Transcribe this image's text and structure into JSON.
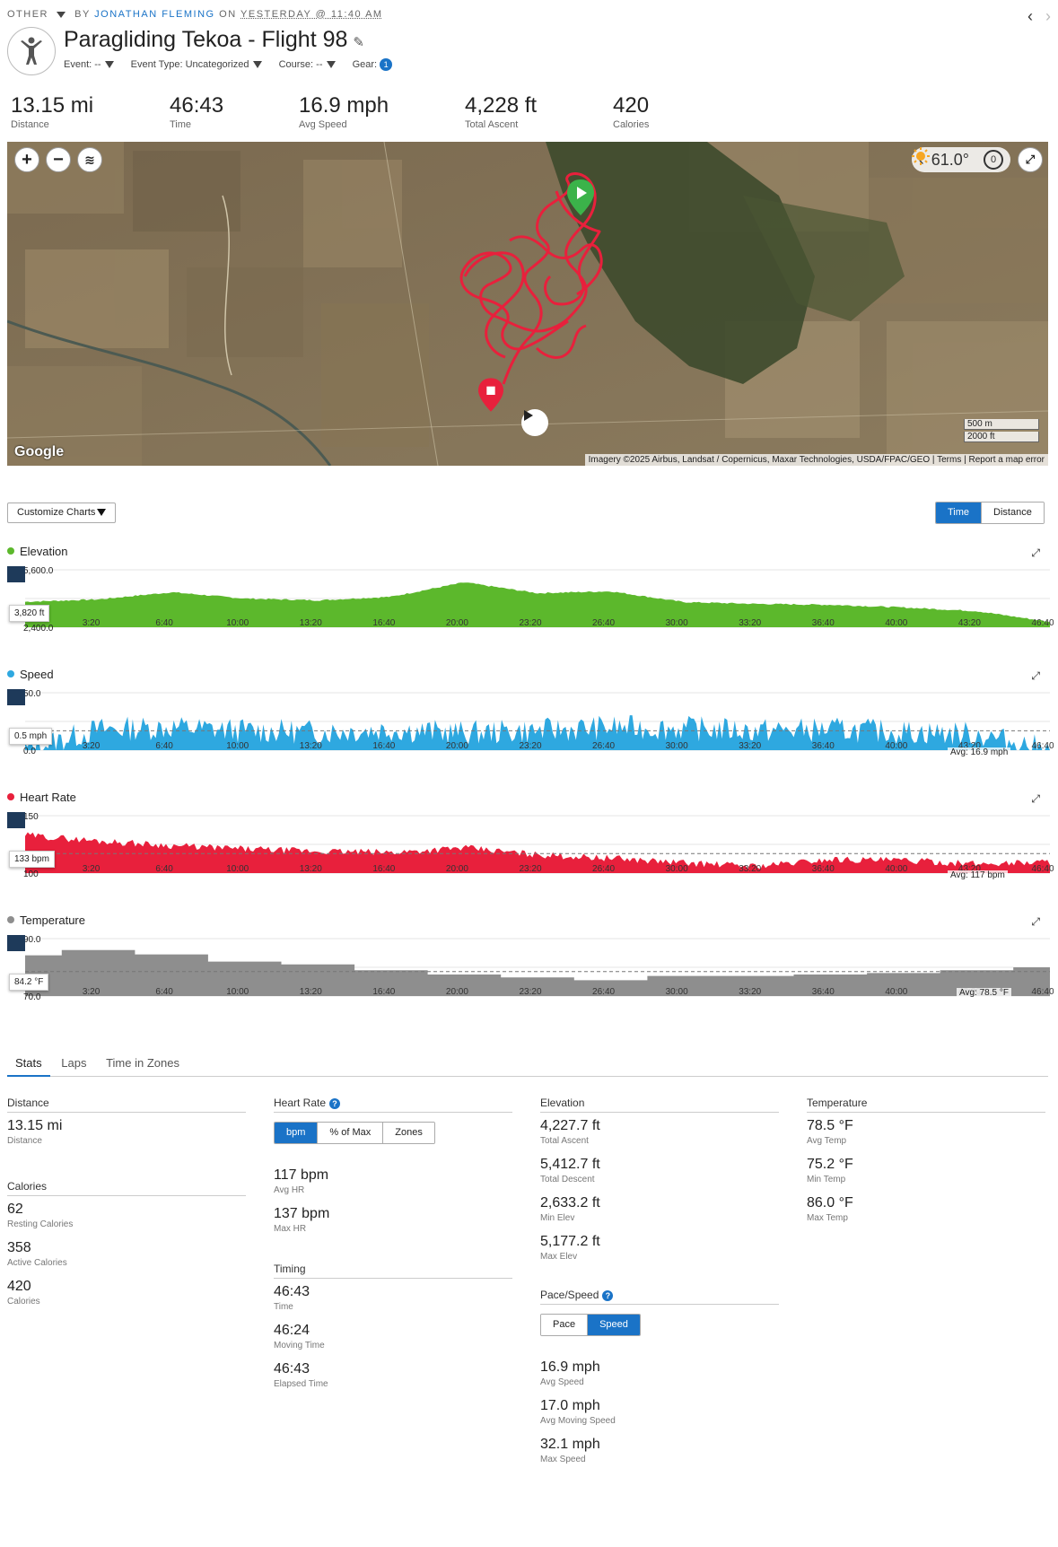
{
  "header": {
    "category": "OTHER",
    "by_label": "BY",
    "author": "JONATHAN FLEMING",
    "on_label": "ON",
    "when": "YESTERDAY @ 11:40 AM",
    "title": "Paragliding Tekoa - Flight 98",
    "meta": {
      "event": "Event: --",
      "event_type": "Event Type: Uncategorized",
      "course": "Course: --",
      "gear": "Gear:",
      "gear_count": "1"
    }
  },
  "summary": [
    {
      "value": "13.15 mi",
      "label": "Distance"
    },
    {
      "value": "46:43",
      "label": "Time"
    },
    {
      "value": "16.9 mph",
      "label": "Avg Speed"
    },
    {
      "value": "4,228 ft",
      "label": "Total Ascent"
    },
    {
      "value": "420",
      "label": "Calories"
    }
  ],
  "map": {
    "temperature": "61.0°",
    "timer_badge": "0",
    "brand": "Google",
    "attribution": "Imagery ©2025 Airbus, Landsat / Copernicus, Maxar Technologies, USDA/FPAC/GEO",
    "terms": "Terms",
    "report": "Report a map error",
    "scale_metric": "500 m",
    "scale_imperial": "2000 ft",
    "track_color": "#e8203c"
  },
  "controls": {
    "customize": "Customize Charts",
    "axis_time": "Time",
    "axis_distance": "Distance"
  },
  "charts": {
    "x_ticks": [
      "3:20",
      "6:40",
      "10:00",
      "13:20",
      "16:40",
      "20:00",
      "23:20",
      "26:40",
      "30:00",
      "33:20",
      "36:40",
      "40:00",
      "43:20",
      "46:40"
    ],
    "elevation": {
      "title": "Elevation",
      "color": "#5cb82c",
      "ymax": "5,600.0",
      "ymin": "2,400.0",
      "tip": "3,820 ft"
    },
    "speed": {
      "title": "Speed",
      "color": "#2ea8e0",
      "ymax": "50.0",
      "ymin": "0.0",
      "tip": "0.5 mph",
      "avg": "Avg: 16.9 mph"
    },
    "heart": {
      "title": "Heart Rate",
      "color": "#e8203c",
      "ymax": "150",
      "ymin": "100",
      "tip": "133 bpm",
      "avg": "Avg: 117 bpm"
    },
    "temp": {
      "title": "Temperature",
      "color": "#8e8e8e",
      "ymax": "90.0",
      "ymin": "70.0",
      "tip": "84.2 °F",
      "avg": "Avg: 78.5 °F"
    }
  },
  "chart_data": [
    {
      "type": "area",
      "title": "Elevation",
      "ylim": [
        2400,
        5600
      ],
      "x": [
        "0:00",
        "3:20",
        "6:40",
        "10:00",
        "13:20",
        "16:40",
        "20:00",
        "23:20",
        "26:40",
        "30:00",
        "33:20",
        "36:40",
        "40:00",
        "43:20",
        "46:40"
      ],
      "values": [
        3820,
        3950,
        4350,
        4000,
        3900,
        4100,
        4900,
        4300,
        4400,
        3800,
        3700,
        3650,
        3500,
        3300,
        2700
      ]
    },
    {
      "type": "area",
      "title": "Speed",
      "ylim": [
        0,
        50
      ],
      "x": [
        "0:00",
        "3:20",
        "6:40",
        "10:00",
        "13:20",
        "16:40",
        "20:00",
        "23:20",
        "26:40",
        "30:00",
        "33:20",
        "36:40",
        "40:00",
        "43:20",
        "46:40"
      ],
      "values": [
        0.5,
        18,
        20,
        17,
        16,
        18,
        15,
        17,
        20,
        19,
        17,
        18,
        16,
        14,
        0
      ]
    },
    {
      "type": "area",
      "title": "Heart Rate",
      "ylim": [
        100,
        150
      ],
      "x": [
        "0:00",
        "3:20",
        "6:40",
        "10:00",
        "13:20",
        "16:40",
        "20:00",
        "23:20",
        "26:40",
        "30:00",
        "33:20",
        "36:40",
        "40:00",
        "43:20",
        "46:40"
      ],
      "values": [
        133,
        128,
        124,
        121,
        119,
        118,
        122,
        116,
        113,
        109,
        106,
        112,
        111,
        108,
        110
      ]
    },
    {
      "type": "area",
      "title": "Temperature",
      "ylim": [
        70,
        90
      ],
      "x": [
        "0:00",
        "3:20",
        "6:40",
        "10:00",
        "13:20",
        "16:40",
        "20:00",
        "23:20",
        "26:40",
        "30:00",
        "33:20",
        "36:40",
        "40:00",
        "43:20",
        "46:40"
      ],
      "values": [
        84.2,
        86,
        84.5,
        82,
        81,
        79,
        77.5,
        76.5,
        75.5,
        77,
        77,
        77.5,
        78,
        79,
        80
      ]
    }
  ],
  "tabs": [
    "Stats",
    "Laps",
    "Time in Zones"
  ],
  "stats": {
    "distance": {
      "heading": "Distance",
      "items": [
        {
          "v": "13.15 mi",
          "l": "Distance"
        }
      ]
    },
    "calories": {
      "heading": "Calories",
      "items": [
        {
          "v": "62",
          "l": "Resting Calories"
        },
        {
          "v": "358",
          "l": "Active Calories"
        },
        {
          "v": "420",
          "l": "Calories"
        }
      ]
    },
    "heart": {
      "heading": "Heart Rate",
      "toggle": [
        "bpm",
        "% of Max",
        "Zones"
      ],
      "items": [
        {
          "v": "117 bpm",
          "l": "Avg HR"
        },
        {
          "v": "137 bpm",
          "l": "Max HR"
        }
      ]
    },
    "timing": {
      "heading": "Timing",
      "items": [
        {
          "v": "46:43",
          "l": "Time"
        },
        {
          "v": "46:24",
          "l": "Moving Time"
        },
        {
          "v": "46:43",
          "l": "Elapsed Time"
        }
      ]
    },
    "elevation": {
      "heading": "Elevation",
      "items": [
        {
          "v": "4,227.7 ft",
          "l": "Total Ascent"
        },
        {
          "v": "5,412.7 ft",
          "l": "Total Descent"
        },
        {
          "v": "2,633.2 ft",
          "l": "Min Elev"
        },
        {
          "v": "5,177.2 ft",
          "l": "Max Elev"
        }
      ]
    },
    "pace": {
      "heading": "Pace/Speed",
      "toggle": [
        "Pace",
        "Speed"
      ],
      "items": [
        {
          "v": "16.9 mph",
          "l": "Avg Speed"
        },
        {
          "v": "17.0 mph",
          "l": "Avg Moving Speed"
        },
        {
          "v": "32.1 mph",
          "l": "Max Speed"
        }
      ]
    },
    "temperature": {
      "heading": "Temperature",
      "items": [
        {
          "v": "78.5 °F",
          "l": "Avg Temp"
        },
        {
          "v": "75.2 °F",
          "l": "Min Temp"
        },
        {
          "v": "86.0 °F",
          "l": "Max Temp"
        }
      ]
    }
  }
}
